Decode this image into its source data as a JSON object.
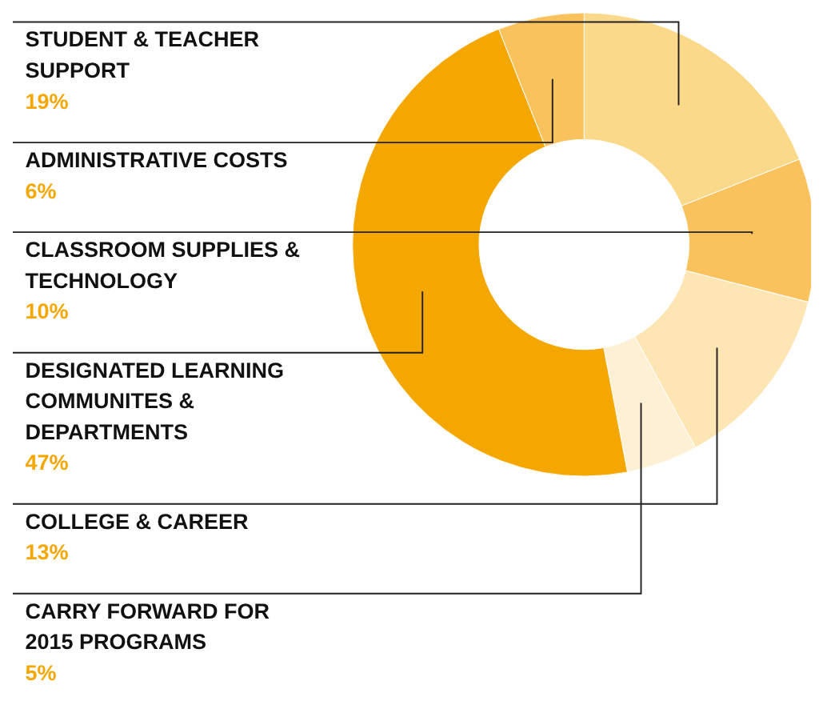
{
  "chart_data": {
    "type": "donut",
    "categories": [
      "STUDENT & TEACHER SUPPORT",
      "CLASSROOM SUPPLIES & TECHNOLOGY",
      "COLLEGE & CAREER",
      "CARRY FORWARD FOR 2015 PROGRAMS",
      "DESIGNATED LEARNING COMMUNITES & DEPARTMENTS",
      "ADMINISTRATIVE COSTS"
    ],
    "values": [
      19,
      10,
      13,
      5,
      47,
      6
    ],
    "colors": [
      "#fbd98a",
      "#f9c25c",
      "#fde6b3",
      "#fdf0d5",
      "#f4a700",
      "#f9c25c"
    ],
    "value_labels": [
      "19%",
      "10%",
      "13%",
      "5%",
      "47%",
      "6%"
    ]
  }
}
